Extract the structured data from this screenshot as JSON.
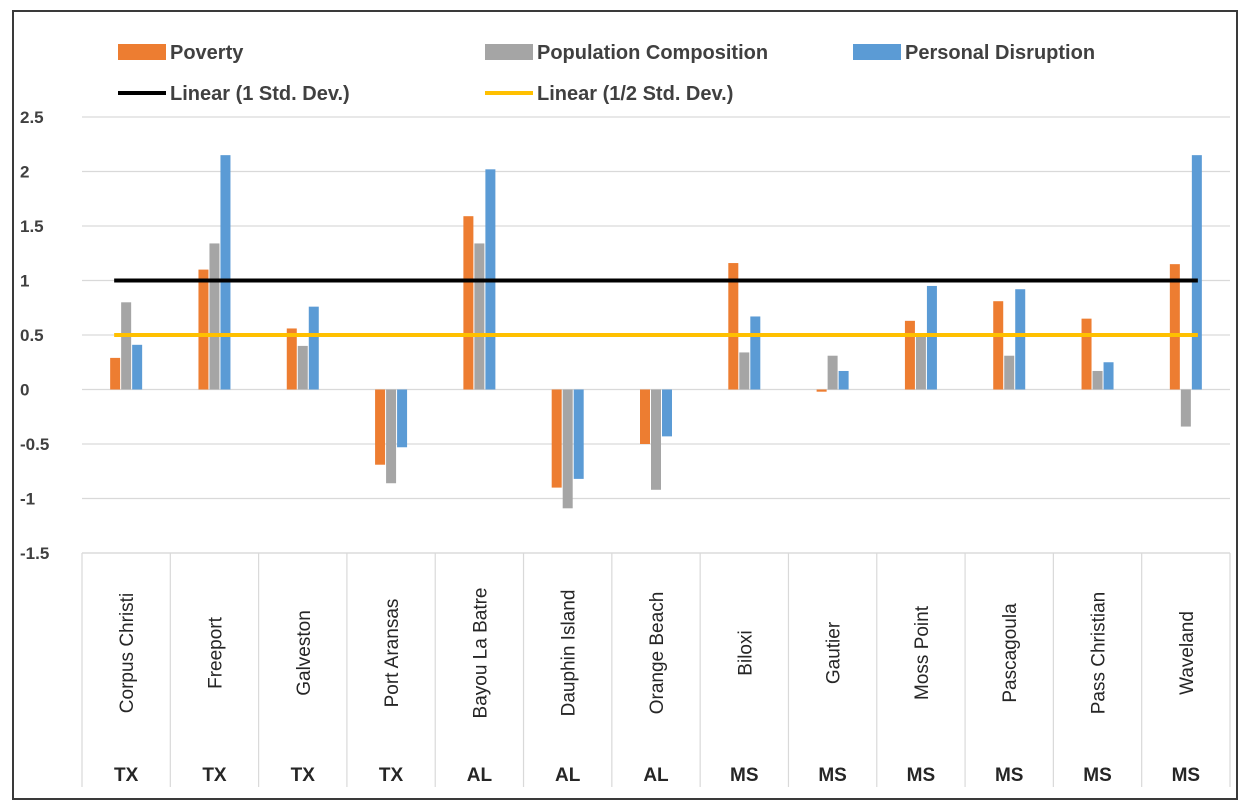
{
  "chart_data": {
    "type": "bar",
    "title": "",
    "xlabel": "",
    "ylabel": "",
    "ylim": [
      -1.5,
      2.5
    ],
    "yticks": [
      2.5,
      2,
      1.5,
      1,
      0.5,
      0,
      -0.5,
      -1,
      -1.5
    ],
    "grid": true,
    "legend_position": "top",
    "categories": [
      "Corpus Christi",
      "Freeport",
      "Galveston",
      "Port Aransas",
      "Bayou La Batre",
      "Dauphin Island",
      "Orange Beach",
      "Biloxi",
      "Gautier",
      "Moss Point",
      "Pascagoula",
      "Pass Christian",
      "Waveland"
    ],
    "groups": [
      "TX",
      "TX",
      "TX",
      "TX",
      "AL",
      "AL",
      "AL",
      "MS",
      "MS",
      "MS",
      "MS",
      "MS",
      "MS"
    ],
    "series": [
      {
        "name": "Poverty",
        "color": "#ED7D31",
        "values": [
          0.29,
          1.1,
          0.56,
          -0.69,
          1.59,
          -0.9,
          -0.5,
          1.16,
          -0.02,
          0.63,
          0.81,
          0.65,
          1.15
        ]
      },
      {
        "name": "Population Composition",
        "color": "#A5A5A5",
        "values": [
          0.8,
          1.34,
          0.4,
          -0.86,
          1.34,
          -1.09,
          -0.92,
          0.34,
          0.31,
          0.49,
          0.31,
          0.17,
          -0.34
        ]
      },
      {
        "name": "Personal Disruption",
        "color": "#5B9BD5",
        "values": [
          0.41,
          2.15,
          0.76,
          -0.53,
          2.02,
          -0.82,
          -0.43,
          0.67,
          0.17,
          0.95,
          0.92,
          0.25,
          2.15
        ]
      }
    ],
    "lines": [
      {
        "name": "Linear (1 Std. Dev.)",
        "color": "#000000",
        "value": 1
      },
      {
        "name": "Linear (1/2 Std. Dev.)",
        "color": "#FFC000",
        "value": 0.5
      }
    ]
  }
}
